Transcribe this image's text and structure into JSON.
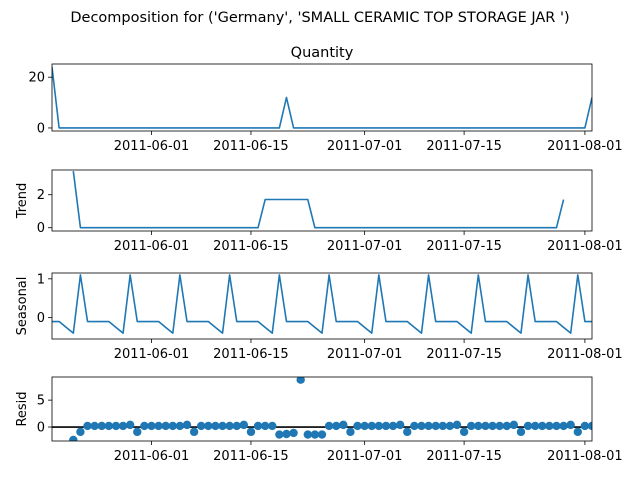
{
  "chart_data": {
    "suptitle": "Decomposition for ('Germany', 'SMALL CERAMIC TOP STORAGE JAR ')",
    "x_tick_labels": [
      "2011-06-01",
      "2011-06-15",
      "2011-07-01",
      "2011-07-15",
      "2011-08-01"
    ],
    "x_tick_dates": [
      "2011-06-01",
      "2011-06-15",
      "2011-07-01",
      "2011-07-15",
      "2011-08-01"
    ],
    "x_range": [
      "2011-05-18",
      "2011-08-02"
    ],
    "series_color": "#1f77b4",
    "panels": [
      {
        "type": "line",
        "title": "Quantity",
        "ylabel": "",
        "ylim": [
          -1.2,
          25.2
        ],
        "yticks": [
          0,
          20
        ],
        "x_start": "2011-05-18",
        "values": [
          24,
          0,
          0,
          0,
          0,
          0,
          0,
          0,
          0,
          0,
          0,
          0,
          0,
          0,
          0,
          0,
          0,
          0,
          0,
          0,
          0,
          0,
          0,
          0,
          0,
          0,
          0,
          0,
          0,
          0,
          0,
          0,
          0,
          12,
          0,
          0,
          0,
          0,
          0,
          0,
          0,
          0,
          0,
          0,
          0,
          0,
          0,
          0,
          0,
          0,
          0,
          0,
          0,
          0,
          0,
          0,
          0,
          0,
          0,
          0,
          0,
          0,
          0,
          0,
          0,
          0,
          0,
          0,
          0,
          0,
          0,
          0,
          0,
          0,
          0,
          0,
          12
        ]
      },
      {
        "type": "line",
        "title": "",
        "ylabel": "Trend",
        "ylim": [
          -0.2,
          3.5
        ],
        "yticks": [
          0,
          2
        ],
        "x_start": "2011-05-21",
        "values": [
          3.43,
          0,
          0,
          0,
          0,
          0,
          0,
          0,
          0,
          0,
          0,
          0,
          0,
          0,
          0,
          0,
          0,
          0,
          0,
          0,
          0,
          0,
          0,
          0,
          0,
          0,
          0,
          1.71,
          1.71,
          1.71,
          1.71,
          1.71,
          1.71,
          1.71,
          0,
          0,
          0,
          0,
          0,
          0,
          0,
          0,
          0,
          0,
          0,
          0,
          0,
          0,
          0,
          0,
          0,
          0,
          0,
          0,
          0,
          0,
          0,
          0,
          0,
          0,
          0,
          0,
          0,
          0,
          0,
          0,
          0,
          0,
          0,
          1.71
        ]
      },
      {
        "type": "line",
        "title": "",
        "ylabel": "Seasonal",
        "ylim": [
          -0.55,
          1.15
        ],
        "yticks": [
          0,
          1
        ],
        "x_start": "2011-05-18",
        "pattern": [
          -0.1,
          -0.1,
          -0.25,
          -0.4,
          1.1,
          -0.1,
          -0.1
        ],
        "values": []
      },
      {
        "type": "scatter",
        "title": "",
        "ylabel": "Resid",
        "ylim": [
          -2.6,
          9.3
        ],
        "yticks": [
          0,
          5
        ],
        "baseline": 0,
        "x_start": "2011-05-21",
        "values": [
          -2.4,
          -0.9,
          0.2,
          0.2,
          0.2,
          0.2,
          0.2,
          0.2,
          0.4,
          -0.9,
          0.2,
          0.2,
          0.2,
          0.2,
          0.2,
          0.2,
          0.4,
          -0.9,
          0.2,
          0.2,
          0.2,
          0.2,
          0.2,
          0.2,
          0.4,
          -0.9,
          0.2,
          0.2,
          0.2,
          -1.4,
          -1.3,
          -1.1,
          8.8,
          -1.4,
          -1.4,
          -1.4,
          0.2,
          0.2,
          0.4,
          -0.9,
          0.2,
          0.2,
          0.2,
          0.2,
          0.2,
          0.2,
          0.4,
          -0.9,
          0.2,
          0.2,
          0.2,
          0.2,
          0.2,
          0.2,
          0.4,
          -0.9,
          0.2,
          0.2,
          0.2,
          0.2,
          0.2,
          0.2,
          0.4,
          -0.9,
          0.2,
          0.2,
          0.2,
          0.2,
          0.2,
          0.2,
          0.4,
          -0.9,
          0.2,
          0.2,
          0.2,
          0.2,
          0.2,
          0.2,
          -1.2
        ]
      }
    ]
  }
}
